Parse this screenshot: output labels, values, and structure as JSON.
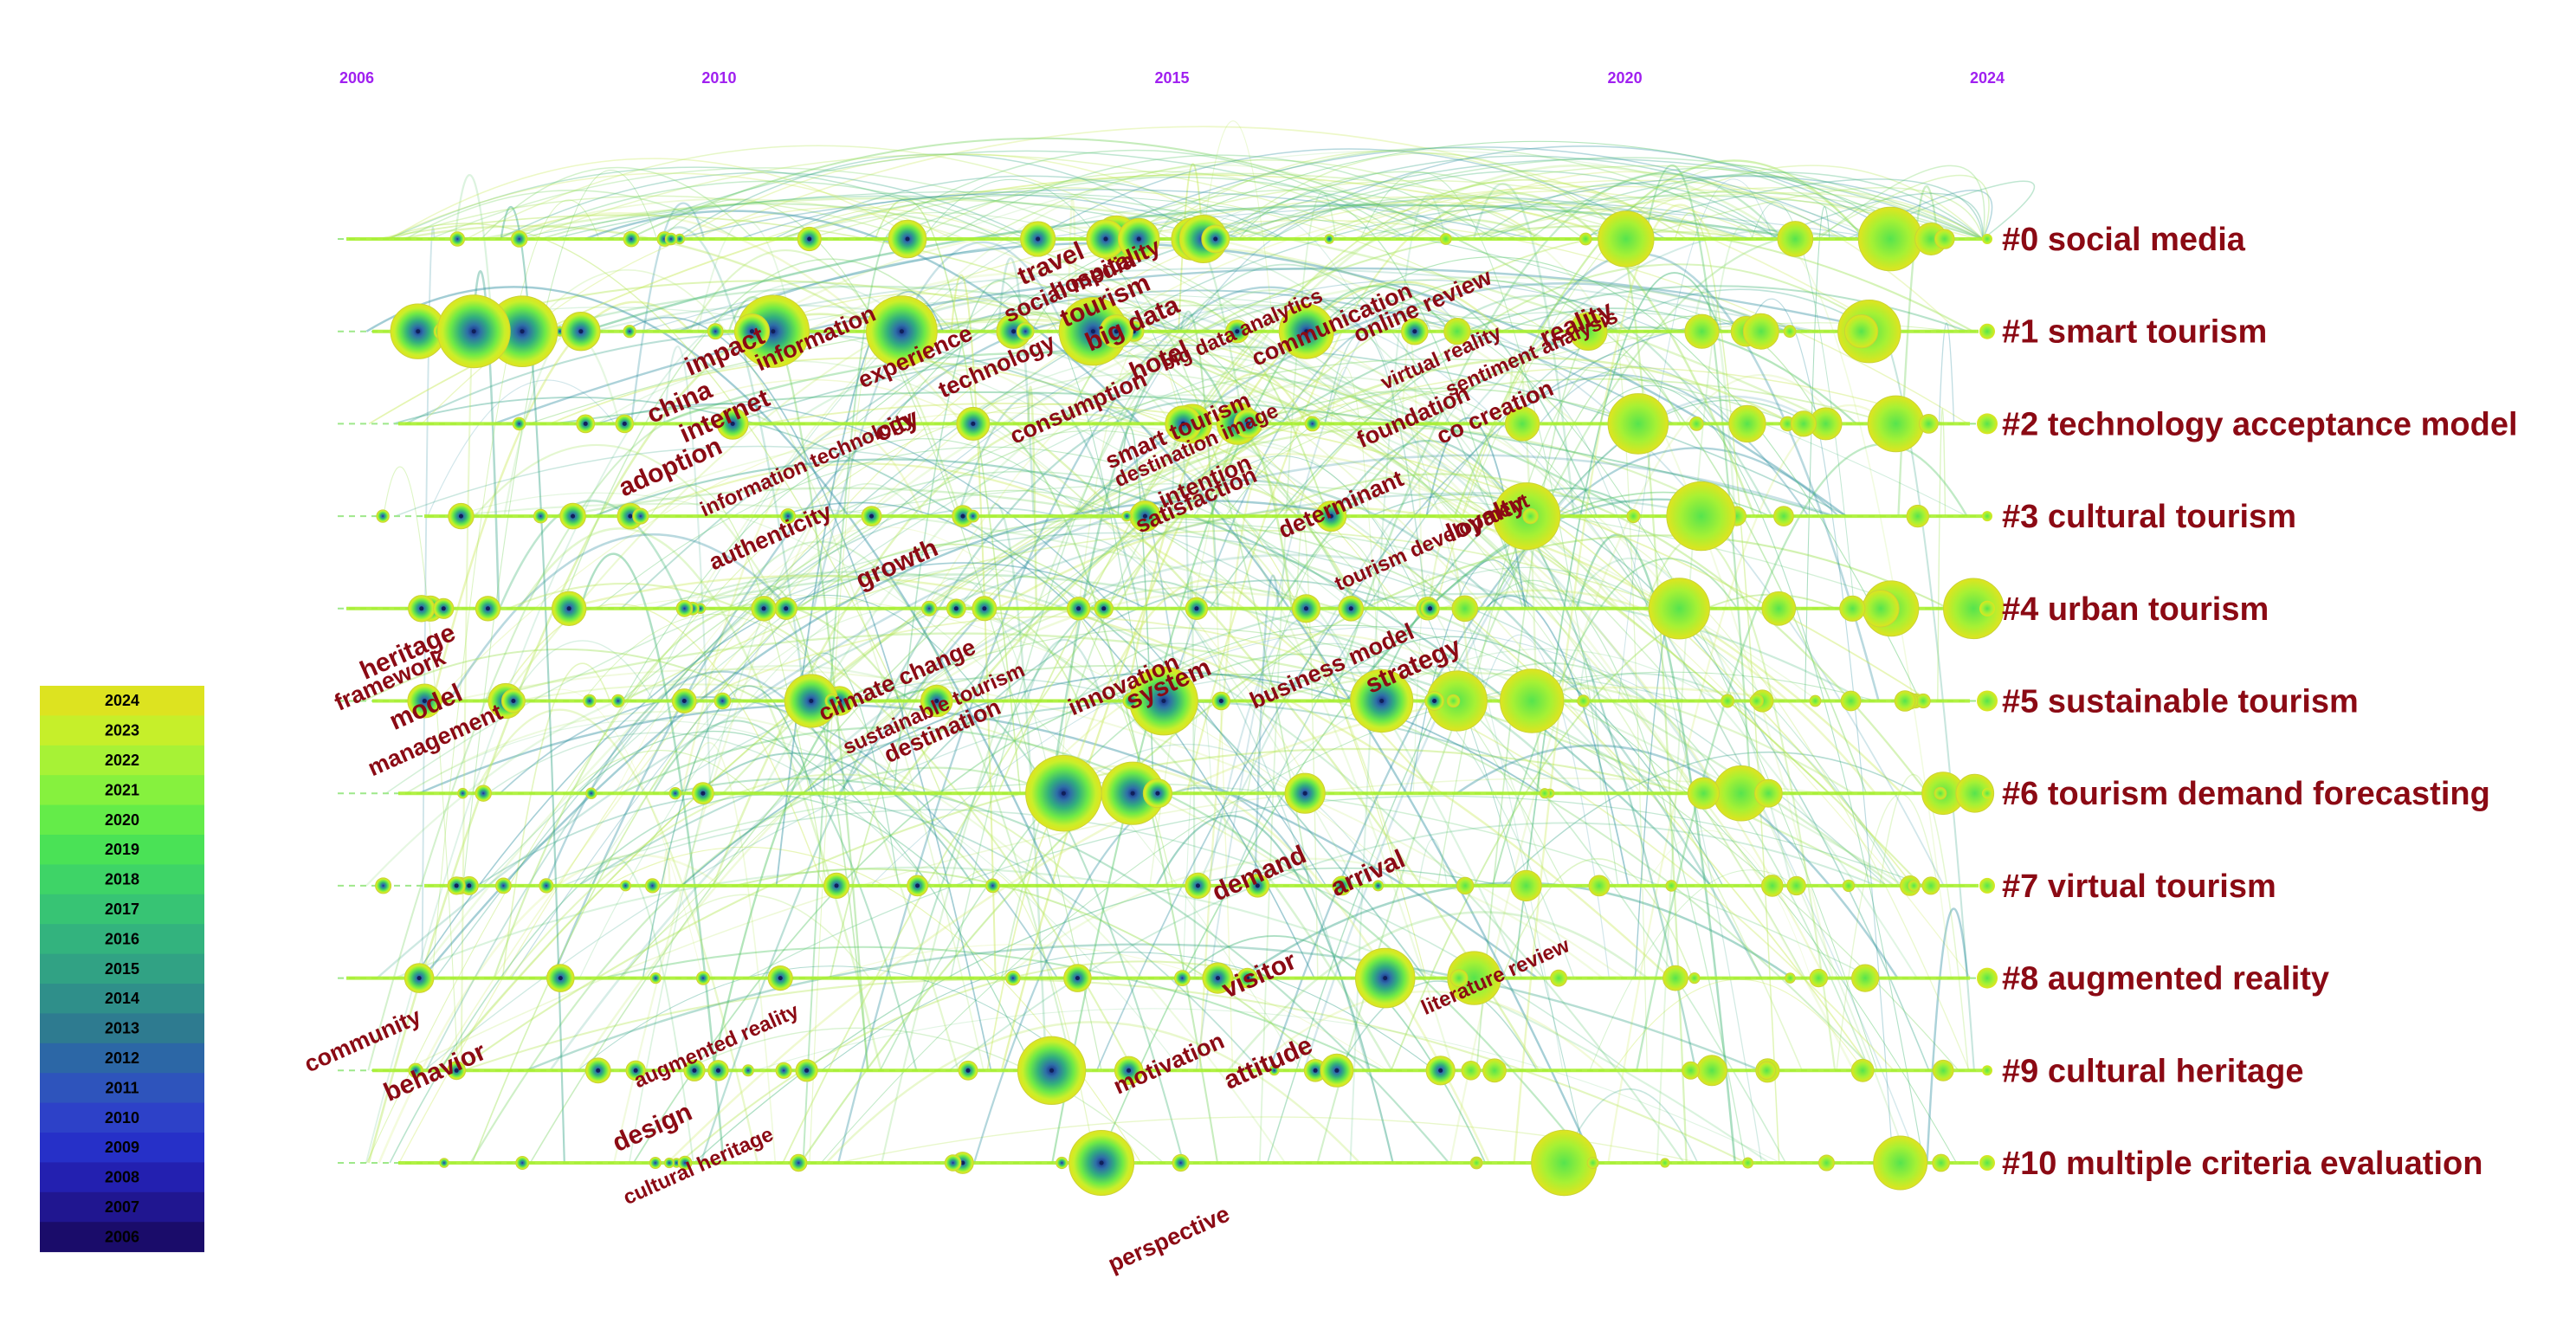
{
  "timeline": {
    "years": [
      {
        "label": "2006",
        "value": 2006
      },
      {
        "label": "2010",
        "value": 2010
      },
      {
        "label": "2015",
        "value": 2015
      },
      {
        "label": "2020",
        "value": 2020
      },
      {
        "label": "2024",
        "value": 2024
      }
    ],
    "range": [
      2006,
      2024
    ]
  },
  "clusters": [
    {
      "id": 0,
      "label": "#0 social media"
    },
    {
      "id": 1,
      "label": "#1 smart tourism"
    },
    {
      "id": 2,
      "label": "#2 technology acceptance model"
    },
    {
      "id": 3,
      "label": "#3 cultural tourism"
    },
    {
      "id": 4,
      "label": "#4 urban tourism"
    },
    {
      "id": 5,
      "label": "#5 sustainable tourism"
    },
    {
      "id": 6,
      "label": "#6 tourism demand forecasting"
    },
    {
      "id": 7,
      "label": "#7 virtual tourism"
    },
    {
      "id": 8,
      "label": "#8 augmented reality"
    },
    {
      "id": 9,
      "label": "#9 cultural heritage"
    },
    {
      "id": 10,
      "label": "#10 multiple criteria evaluation"
    }
  ],
  "keywords": [
    {
      "text": "travel",
      "year": 2013.7,
      "cluster": 0.35
    },
    {
      "text": "social media",
      "year": 2013.9,
      "cluster": 0.6
    },
    {
      "text": "hospitality",
      "year": 2014.3,
      "cluster": 0.4
    },
    {
      "text": "tourism",
      "year": 2014.3,
      "cluster": 0.75
    },
    {
      "text": "big data",
      "year": 2014.6,
      "cluster": 1.0
    },
    {
      "text": "big data analytics",
      "year": 2015.8,
      "cluster": 1.05
    },
    {
      "text": "communication",
      "year": 2016.8,
      "cluster": 1.0
    },
    {
      "text": "online review",
      "year": 2017.8,
      "cluster": 0.8
    },
    {
      "text": "impact",
      "year": 2010.1,
      "cluster": 1.3
    },
    {
      "text": "information",
      "year": 2011.1,
      "cluster": 1.15
    },
    {
      "text": "experience",
      "year": 2012.2,
      "cluster": 1.35
    },
    {
      "text": "technology",
      "year": 2013.1,
      "cluster": 1.45
    },
    {
      "text": "hotel",
      "year": 2014.9,
      "cluster": 1.4
    },
    {
      "text": "virtual reality",
      "year": 2018.0,
      "cluster": 1.35
    },
    {
      "text": "sentiment analysis",
      "year": 2019.0,
      "cluster": 1.3
    },
    {
      "text": "reality",
      "year": 2019.5,
      "cluster": 1.0
    },
    {
      "text": "china",
      "year": 2009.6,
      "cluster": 1.85
    },
    {
      "text": "internet",
      "year": 2010.1,
      "cluster": 2.0
    },
    {
      "text": "city",
      "year": 2012.0,
      "cluster": 2.1
    },
    {
      "text": "consumption",
      "year": 2014.0,
      "cluster": 1.9
    },
    {
      "text": "smart tourism",
      "year": 2015.1,
      "cluster": 2.15
    },
    {
      "text": "destination image",
      "year": 2015.3,
      "cluster": 2.3
    },
    {
      "text": "foundation",
      "year": 2017.7,
      "cluster": 2.0
    },
    {
      "text": "co creation",
      "year": 2018.6,
      "cluster": 1.95
    },
    {
      "text": "adoption",
      "year": 2009.5,
      "cluster": 2.55
    },
    {
      "text": "information technology",
      "year": 2011.0,
      "cluster": 2.5
    },
    {
      "text": "intention",
      "year": 2015.4,
      "cluster": 2.7
    },
    {
      "text": "satisfaction",
      "year": 2015.3,
      "cluster": 2.9
    },
    {
      "text": "determinant",
      "year": 2016.9,
      "cluster": 2.95
    },
    {
      "text": "tourism development",
      "year": 2017.9,
      "cluster": 3.35
    },
    {
      "text": "loyalty",
      "year": 2018.5,
      "cluster": 3.1
    },
    {
      "text": "authenticity",
      "year": 2010.6,
      "cluster": 3.3
    },
    {
      "text": "growth",
      "year": 2012.0,
      "cluster": 3.6
    },
    {
      "text": "heritage",
      "year": 2006.6,
      "cluster": 4.55
    },
    {
      "text": "framework",
      "year": 2006.4,
      "cluster": 4.85
    },
    {
      "text": "model",
      "year": 2006.8,
      "cluster": 5.15
    },
    {
      "text": "management",
      "year": 2006.9,
      "cluster": 5.5
    },
    {
      "text": "climate change",
      "year": 2012.0,
      "cluster": 4.85
    },
    {
      "text": "sustainable tourism",
      "year": 2012.4,
      "cluster": 5.15
    },
    {
      "text": "destination",
      "year": 2012.5,
      "cluster": 5.4
    },
    {
      "text": "innovation",
      "year": 2014.5,
      "cluster": 4.9
    },
    {
      "text": "system",
      "year": 2015.0,
      "cluster": 4.9
    },
    {
      "text": "business model",
      "year": 2016.8,
      "cluster": 4.7
    },
    {
      "text": "strategy",
      "year": 2017.7,
      "cluster": 4.7
    },
    {
      "text": "demand",
      "year": 2016.0,
      "cluster": 6.95
    },
    {
      "text": "arrival",
      "year": 2017.2,
      "cluster": 6.95
    },
    {
      "text": "community",
      "year": 2006.1,
      "cluster": 8.75
    },
    {
      "text": "behavior",
      "year": 2006.9,
      "cluster": 9.1
    },
    {
      "text": "visitor",
      "year": 2016.0,
      "cluster": 8.05
    },
    {
      "text": "literature review",
      "year": 2018.6,
      "cluster": 8.05
    },
    {
      "text": "augmented reality",
      "year": 2010.0,
      "cluster": 8.8
    },
    {
      "text": "design",
      "year": 2009.3,
      "cluster": 9.7
    },
    {
      "text": "cultural heritage",
      "year": 2009.8,
      "cluster": 10.1
    },
    {
      "text": "motivation",
      "year": 2015.0,
      "cluster": 9.0
    },
    {
      "text": "attitude",
      "year": 2016.1,
      "cluster": 9.0
    },
    {
      "text": "perspective",
      "year": 2015.0,
      "cluster": 10.9
    }
  ],
  "legend": {
    "years": [
      {
        "label": "2024",
        "color": "#dde320"
      },
      {
        "label": "2023",
        "color": "#c6ef2a"
      },
      {
        "label": "2022",
        "color": "#a7f236"
      },
      {
        "label": "2021",
        "color": "#86f13e"
      },
      {
        "label": "2020",
        "color": "#64ec49"
      },
      {
        "label": "2019",
        "color": "#4ae256"
      },
      {
        "label": "2018",
        "color": "#3ed467"
      },
      {
        "label": "2017",
        "color": "#37c474"
      },
      {
        "label": "2016",
        "color": "#33b37e"
      },
      {
        "label": "2015",
        "color": "#31a284"
      },
      {
        "label": "2014",
        "color": "#2f8f8a"
      },
      {
        "label": "2013",
        "color": "#2e7b90"
      },
      {
        "label": "2012",
        "color": "#2c67a6"
      },
      {
        "label": "2011",
        "color": "#2e54bc"
      },
      {
        "label": "2010",
        "color": "#2d41c8"
      },
      {
        "label": "2009",
        "color": "#2630c8"
      },
      {
        "label": "2008",
        "color": "#2320b0"
      },
      {
        "label": "2007",
        "color": "#201690"
      },
      {
        "label": "2006",
        "color": "#1a0c6a"
      }
    ]
  },
  "colors": {
    "year_label": "#a020f0",
    "cluster_label": "#8b0a14",
    "keyword": "#8b0a14",
    "timeline": "#a8f030",
    "dash": "#9ee88a"
  }
}
